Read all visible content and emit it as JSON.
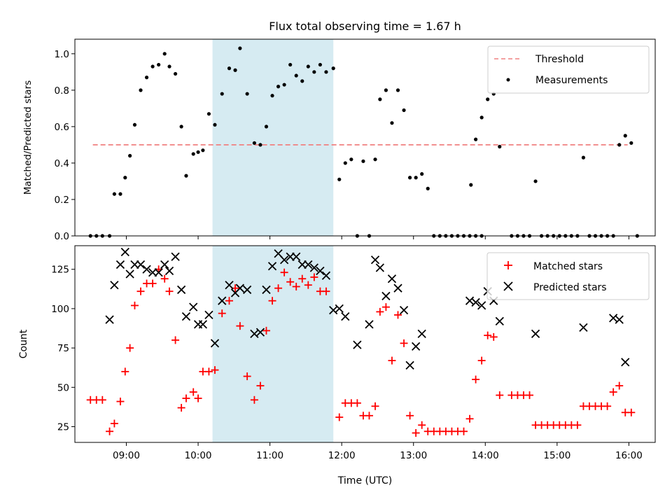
{
  "chart_data": [
    {
      "type": "scatter",
      "title": "Flux total observing time = 1.67 h",
      "xlabel": "",
      "ylabel": "Matched/Predicted stars",
      "xlim": [
        "08:17",
        "16:22"
      ],
      "ylim": [
        0,
        1.08
      ],
      "yticks": [
        0.0,
        0.2,
        0.4,
        0.6,
        0.8,
        1.0
      ],
      "ytick_labels": [
        "0.0",
        "0.2",
        "0.4",
        "0.6",
        "0.8",
        "1.0"
      ],
      "highlight_span": [
        "10:12",
        "11:53"
      ],
      "legend": "top-right",
      "grid": false,
      "series": [
        {
          "name": "Threshold",
          "style": "dashed-line",
          "color": "#f08080",
          "points": [
            [
              "08:32",
              0.5
            ],
            [
              "15:59",
              0.5
            ]
          ]
        },
        {
          "name": "Measurements",
          "style": "dot",
          "color": "#000000",
          "points": [
            [
              "08:30",
              0
            ],
            [
              "08:35",
              0
            ],
            [
              "08:40",
              0
            ],
            [
              "08:46",
              0
            ],
            [
              "08:50",
              0.23
            ],
            [
              "08:55",
              0.23
            ],
            [
              "08:59",
              0.32
            ],
            [
              "09:03",
              0.44
            ],
            [
              "09:07",
              0.61
            ],
            [
              "09:12",
              0.8
            ],
            [
              "09:17",
              0.87
            ],
            [
              "09:22",
              0.93
            ],
            [
              "09:27",
              0.94
            ],
            [
              "09:32",
              1.0
            ],
            [
              "09:36",
              0.93
            ],
            [
              "09:41",
              0.89
            ],
            [
              "09:46",
              0.6
            ],
            [
              "09:50",
              0.33
            ],
            [
              "09:56",
              0.45
            ],
            [
              "10:00",
              0.46
            ],
            [
              "10:04",
              0.47
            ],
            [
              "10:09",
              0.67
            ],
            [
              "10:14",
              0.61
            ],
            [
              "10:20",
              0.78
            ],
            [
              "10:26",
              0.92
            ],
            [
              "10:31",
              0.91
            ],
            [
              "10:35",
              1.03
            ],
            [
              "10:41",
              0.78
            ],
            [
              "10:47",
              0.51
            ],
            [
              "10:52",
              0.5
            ],
            [
              "10:57",
              0.6
            ],
            [
              "11:02",
              0.77
            ],
            [
              "11:07",
              0.82
            ],
            [
              "11:12",
              0.83
            ],
            [
              "11:17",
              0.94
            ],
            [
              "11:22",
              0.88
            ],
            [
              "11:27",
              0.85
            ],
            [
              "11:32",
              0.93
            ],
            [
              "11:37",
              0.9
            ],
            [
              "11:42",
              0.94
            ],
            [
              "11:47",
              0.9
            ],
            [
              "11:53",
              0.92
            ],
            [
              "11:58",
              0.31
            ],
            [
              "12:03",
              0.4
            ],
            [
              "12:08",
              0.42
            ],
            [
              "12:13",
              0
            ],
            [
              "12:18",
              0.41
            ],
            [
              "12:23",
              0
            ],
            [
              "12:28",
              0.42
            ],
            [
              "12:32",
              0.75
            ],
            [
              "12:37",
              0.8
            ],
            [
              "12:42",
              0.62
            ],
            [
              "12:47",
              0.8
            ],
            [
              "12:52",
              0.69
            ],
            [
              "12:57",
              0.32
            ],
            [
              "13:02",
              0.32
            ],
            [
              "13:07",
              0.34
            ],
            [
              "13:12",
              0.26
            ],
            [
              "13:17",
              0
            ],
            [
              "13:22",
              0
            ],
            [
              "13:27",
              0
            ],
            [
              "13:32",
              0
            ],
            [
              "13:37",
              0
            ],
            [
              "13:42",
              0
            ],
            [
              "13:47",
              0
            ],
            [
              "13:52",
              0
            ],
            [
              "13:57",
              0
            ],
            [
              "13:48",
              0.28
            ],
            [
              "13:52",
              0.53
            ],
            [
              "13:57",
              0.65
            ],
            [
              "14:02",
              0.75
            ],
            [
              "14:07",
              0.78
            ],
            [
              "14:12",
              0.49
            ],
            [
              "14:22",
              0
            ],
            [
              "14:27",
              0
            ],
            [
              "14:32",
              0
            ],
            [
              "14:37",
              0
            ],
            [
              "14:42",
              0.3
            ],
            [
              "14:47",
              0
            ],
            [
              "14:52",
              0
            ],
            [
              "14:57",
              0
            ],
            [
              "15:02",
              0
            ],
            [
              "15:07",
              0
            ],
            [
              "15:12",
              0
            ],
            [
              "15:17",
              0
            ],
            [
              "15:22",
              0.43
            ],
            [
              "15:27",
              0
            ],
            [
              "15:32",
              0
            ],
            [
              "15:37",
              0
            ],
            [
              "15:42",
              0
            ],
            [
              "15:47",
              0
            ],
            [
              "15:52",
              0.5
            ],
            [
              "15:57",
              0.55
            ],
            [
              "16:02",
              0.51
            ],
            [
              "16:07",
              0
            ]
          ]
        }
      ]
    },
    {
      "type": "scatter",
      "title": "",
      "xlabel": "Time (UTC)",
      "ylabel": "Count",
      "xlim": [
        "08:17",
        "16:22"
      ],
      "ylim": [
        15,
        140
      ],
      "yticks": [
        25,
        50,
        75,
        100,
        125
      ],
      "ytick_labels": [
        "25",
        "50",
        "75",
        "100",
        "125"
      ],
      "xticks": [
        "09:00",
        "10:00",
        "11:00",
        "12:00",
        "13:00",
        "14:00",
        "15:00",
        "16:00"
      ],
      "xtick_labels": [
        "09:00",
        "10:00",
        "11:00",
        "12:00",
        "13:00",
        "14:00",
        "15:00",
        "16:00"
      ],
      "highlight_span": [
        "10:12",
        "11:53"
      ],
      "legend": "top-right",
      "grid": false,
      "series": [
        {
          "name": "Matched stars",
          "style": "plus",
          "color": "#ff0000",
          "points": [
            [
              "08:30",
              42
            ],
            [
              "08:35",
              42
            ],
            [
              "08:40",
              42
            ],
            [
              "08:46",
              22
            ],
            [
              "08:50",
              27
            ],
            [
              "08:55",
              41
            ],
            [
              "08:59",
              60
            ],
            [
              "09:03",
              75
            ],
            [
              "09:07",
              102
            ],
            [
              "09:12",
              111
            ],
            [
              "09:17",
              116
            ],
            [
              "09:22",
              116
            ],
            [
              "09:27",
              125
            ],
            [
              "09:32",
              119
            ],
            [
              "09:36",
              111
            ],
            [
              "09:41",
              80
            ],
            [
              "09:46",
              37
            ],
            [
              "09:50",
              43
            ],
            [
              "09:56",
              47
            ],
            [
              "10:00",
              43
            ],
            [
              "10:04",
              60
            ],
            [
              "10:09",
              60
            ],
            [
              "10:14",
              61
            ],
            [
              "10:20",
              97
            ],
            [
              "10:26",
              105
            ],
            [
              "10:31",
              113
            ],
            [
              "10:35",
              89
            ],
            [
              "10:41",
              57
            ],
            [
              "10:47",
              42
            ],
            [
              "10:52",
              51
            ],
            [
              "10:57",
              86
            ],
            [
              "11:02",
              105
            ],
            [
              "11:07",
              113
            ],
            [
              "11:12",
              123
            ],
            [
              "11:17",
              117
            ],
            [
              "11:22",
              114
            ],
            [
              "11:27",
              119
            ],
            [
              "11:32",
              115
            ],
            [
              "11:37",
              120
            ],
            [
              "11:42",
              111
            ],
            [
              "11:47",
              111
            ],
            [
              "11:58",
              31
            ],
            [
              "12:03",
              40
            ],
            [
              "12:08",
              40
            ],
            [
              "12:13",
              40
            ],
            [
              "12:18",
              32
            ],
            [
              "12:23",
              32
            ],
            [
              "12:28",
              38
            ],
            [
              "12:32",
              98
            ],
            [
              "12:37",
              101
            ],
            [
              "12:42",
              67
            ],
            [
              "12:47",
              96
            ],
            [
              "12:52",
              78
            ],
            [
              "12:57",
              32
            ],
            [
              "13:02",
              21
            ],
            [
              "13:07",
              26
            ],
            [
              "13:12",
              22
            ],
            [
              "13:17",
              22
            ],
            [
              "13:22",
              22
            ],
            [
              "13:27",
              22
            ],
            [
              "13:32",
              22
            ],
            [
              "13:37",
              22
            ],
            [
              "13:42",
              22
            ],
            [
              "13:47",
              30
            ],
            [
              "13:52",
              55
            ],
            [
              "13:57",
              67
            ],
            [
              "14:02",
              83
            ],
            [
              "14:07",
              82
            ],
            [
              "14:12",
              45
            ],
            [
              "14:22",
              45
            ],
            [
              "14:27",
              45
            ],
            [
              "14:32",
              45
            ],
            [
              "14:37",
              45
            ],
            [
              "14:42",
              26
            ],
            [
              "14:47",
              26
            ],
            [
              "14:52",
              26
            ],
            [
              "14:57",
              26
            ],
            [
              "15:02",
              26
            ],
            [
              "15:07",
              26
            ],
            [
              "15:12",
              26
            ],
            [
              "15:17",
              26
            ],
            [
              "15:22",
              38
            ],
            [
              "15:27",
              38
            ],
            [
              "15:32",
              38
            ],
            [
              "15:37",
              38
            ],
            [
              "15:42",
              38
            ],
            [
              "15:47",
              47
            ],
            [
              "15:52",
              51
            ],
            [
              "15:57",
              34
            ],
            [
              "16:02",
              34
            ]
          ]
        },
        {
          "name": "Predicted stars",
          "style": "x",
          "color": "#000000",
          "points": [
            [
              "08:46",
              93
            ],
            [
              "08:50",
              115
            ],
            [
              "08:55",
              128
            ],
            [
              "08:59",
              136
            ],
            [
              "09:03",
              122
            ],
            [
              "09:07",
              128
            ],
            [
              "09:12",
              128
            ],
            [
              "09:17",
              125
            ],
            [
              "09:22",
              123
            ],
            [
              "09:27",
              123
            ],
            [
              "09:32",
              128
            ],
            [
              "09:36",
              124
            ],
            [
              "09:41",
              133
            ],
            [
              "09:46",
              112
            ],
            [
              "09:50",
              95
            ],
            [
              "09:56",
              101
            ],
            [
              "10:00",
              90
            ],
            [
              "10:04",
              90
            ],
            [
              "10:09",
              96
            ],
            [
              "10:14",
              78
            ],
            [
              "10:20",
              105
            ],
            [
              "10:26",
              115
            ],
            [
              "10:31",
              110
            ],
            [
              "10:35",
              113
            ],
            [
              "10:41",
              112
            ],
            [
              "10:47",
              84
            ],
            [
              "10:52",
              85
            ],
            [
              "10:57",
              112
            ],
            [
              "11:02",
              127
            ],
            [
              "11:07",
              135
            ],
            [
              "11:12",
              131
            ],
            [
              "11:17",
              133
            ],
            [
              "11:22",
              133
            ],
            [
              "11:27",
              128
            ],
            [
              "11:32",
              128
            ],
            [
              "11:37",
              126
            ],
            [
              "11:42",
              124
            ],
            [
              "11:47",
              121
            ],
            [
              "11:53",
              99
            ],
            [
              "11:58",
              100
            ],
            [
              "12:03",
              95
            ],
            [
              "12:13",
              77
            ],
            [
              "12:23",
              90
            ],
            [
              "12:28",
              131
            ],
            [
              "12:32",
              126
            ],
            [
              "12:37",
              108
            ],
            [
              "12:42",
              119
            ],
            [
              "12:47",
              113
            ],
            [
              "12:52",
              99
            ],
            [
              "12:57",
              64
            ],
            [
              "13:02",
              76
            ],
            [
              "13:07",
              84
            ],
            [
              "13:47",
              105
            ],
            [
              "13:52",
              104
            ],
            [
              "13:57",
              102
            ],
            [
              "14:02",
              111
            ],
            [
              "14:07",
              105
            ],
            [
              "14:12",
              92
            ],
            [
              "14:42",
              84
            ],
            [
              "15:22",
              88
            ],
            [
              "15:47",
              94
            ],
            [
              "15:52",
              93
            ],
            [
              "15:57",
              66
            ]
          ]
        }
      ]
    }
  ]
}
